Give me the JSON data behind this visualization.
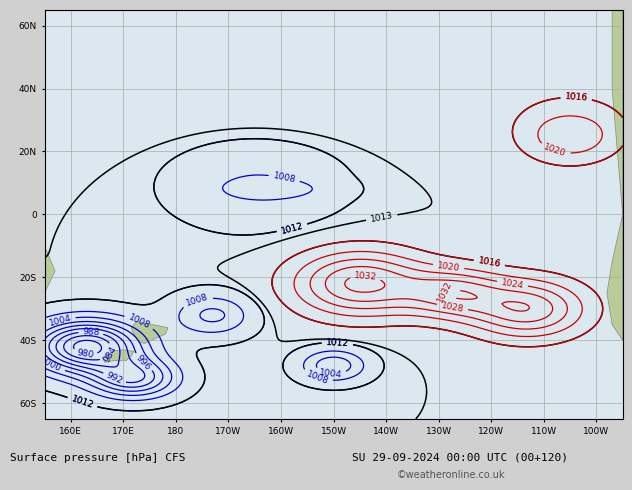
{
  "title": "Surface pressure [hPa] CFS",
  "date_label": "SU 29-09-2024 00:00 UTC (00+120)",
  "copyright": "©weatheronline.co.uk",
  "background_color": "#e8e8e8",
  "map_background": "#d8e8f0",
  "land_color": "#c8d8b0",
  "grid_color": "#aaaaaa",
  "figsize": [
    6.34,
    4.9
  ],
  "dpi": 100,
  "xlim": [
    155,
    260
  ],
  "ylim": [
    -65,
    65
  ],
  "xticks": [
    160,
    170,
    180,
    190,
    200,
    210,
    220,
    230,
    240,
    250,
    260
  ],
  "xtick_labels": [
    "160E",
    "170E",
    "180",
    "170W",
    "160W",
    "150W",
    "140W",
    "130W",
    "120W",
    "110W",
    "100W"
  ],
  "yticks": [
    -60,
    -40,
    -20,
    0,
    20,
    40,
    60
  ],
  "ytick_labels": [
    "60S",
    "40S",
    "20S",
    "0",
    "20N",
    "40N",
    "60N"
  ],
  "contour_levels_black": [
    1012,
    1013,
    1016,
    1020,
    1024,
    1028,
    1013
  ],
  "contour_levels_red": [
    1016,
    1020,
    1024,
    1028,
    1032
  ],
  "contour_levels_blue": [
    980,
    984,
    988,
    992,
    996,
    1000,
    1004,
    1008,
    1012
  ],
  "contour_color_black": "#000000",
  "contour_color_red": "#cc0000",
  "contour_color_blue": "#0000cc",
  "font_size_bottom": 8,
  "font_size_labels": 7
}
